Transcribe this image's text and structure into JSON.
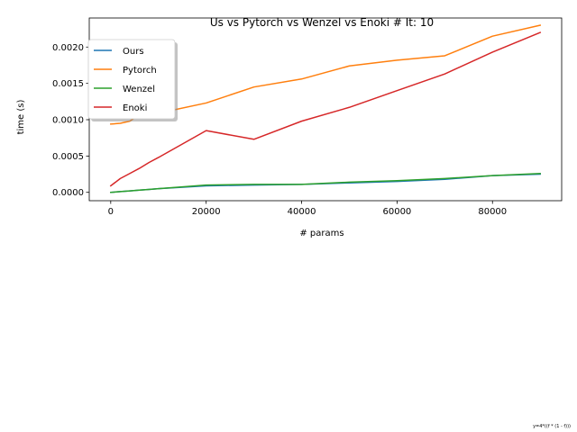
{
  "chart_data": {
    "type": "line",
    "title": "Us vs Pytorch vs Wenzel vs Enoki # It: 10",
    "xlabel": "# params",
    "ylabel": "time (s)",
    "xlim": [
      -4500,
      94500
    ],
    "ylim": [
      -0.000115,
      0.0024
    ],
    "x_ticks": [
      0,
      20000,
      40000,
      60000,
      80000
    ],
    "x_tick_labels": [
      "0",
      "20000",
      "40000",
      "60000",
      "80000"
    ],
    "y_ticks": [
      0,
      0.0005,
      0.001,
      0.0015,
      0.002
    ],
    "y_tick_labels": [
      "0.0000",
      "0.0005",
      "0.0010",
      "0.0015",
      "0.0020"
    ],
    "grid": false,
    "legend_position": "top-left",
    "series": [
      {
        "name": "Ours",
        "color": "#1f77b4",
        "x": [
          0,
          2000,
          4000,
          6000,
          8000,
          10000,
          20000,
          30000,
          40000,
          50000,
          60000,
          70000,
          80000,
          90000
        ],
        "y": [
          0.0,
          1e-05,
          2e-05,
          3e-05,
          4e-05,
          5e-05,
          9e-05,
          0.0001,
          0.00011,
          0.00013,
          0.00015,
          0.00018,
          0.00023,
          0.00025
        ]
      },
      {
        "name": "Pytorch",
        "color": "#ff7f0e",
        "x": [
          0,
          2000,
          4000,
          6000,
          8000,
          10000,
          20000,
          30000,
          40000,
          50000,
          60000,
          70000,
          80000,
          90000
        ],
        "y": [
          0.00094,
          0.00095,
          0.00098,
          0.00107,
          0.00106,
          0.00109,
          0.00123,
          0.00145,
          0.00156,
          0.00174,
          0.00182,
          0.00188,
          0.00215,
          0.0023
        ]
      },
      {
        "name": "Wenzel",
        "color": "#2ca02c",
        "x": [
          0,
          2000,
          4000,
          6000,
          8000,
          10000,
          20000,
          30000,
          40000,
          50000,
          60000,
          70000,
          80000,
          90000
        ],
        "y": [
          0.0,
          1e-05,
          2e-05,
          3e-05,
          4e-05,
          5e-05,
          0.0001,
          0.00011,
          0.00011,
          0.00014,
          0.00016,
          0.00019,
          0.00023,
          0.00026
        ]
      },
      {
        "name": "Enoki",
        "color": "#d62728",
        "x": [
          0,
          2000,
          4000,
          6000,
          8000,
          10000,
          20000,
          30000,
          40000,
          50000,
          60000,
          70000,
          80000,
          90000
        ],
        "y": [
          9e-05,
          0.00019,
          0.00026,
          0.00033,
          0.00041,
          0.00048,
          0.00085,
          0.00073,
          0.00098,
          0.00117,
          0.0014,
          0.00163,
          0.00193,
          0.0022
        ]
      }
    ],
    "footnote": "y=4*((f * (1 - f)))"
  }
}
